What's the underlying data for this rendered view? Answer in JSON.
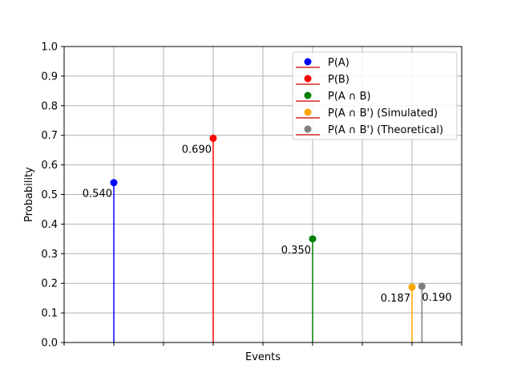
{
  "chart_data": {
    "type": "stem",
    "title": "",
    "xlabel": "Events",
    "ylabel": "Probability",
    "ylim": [
      0,
      1.0
    ],
    "xlim": [
      -0.5,
      3.5
    ],
    "grid": true,
    "yticks": [
      "0.0",
      "0.1",
      "0.2",
      "0.3",
      "0.4",
      "0.5",
      "0.6",
      "0.7",
      "0.8",
      "0.9",
      "1.0"
    ],
    "legend_position": "upper right",
    "series": [
      {
        "name": "P(A)",
        "x": 0,
        "value": 0.54,
        "label": "0.540",
        "color": "#0000ff"
      },
      {
        "name": "P(B)",
        "x": 1,
        "value": 0.69,
        "label": "0.690",
        "color": "#ff0000"
      },
      {
        "name": "P(A ∩ B)",
        "x": 2,
        "value": 0.35,
        "label": "0.350",
        "color": "#008000"
      },
      {
        "name": "P(A ∩ B') (Simulated)",
        "x": 3,
        "value": 0.187,
        "label": "0.187",
        "color": "#ffa500"
      },
      {
        "name": "P(A ∩ B') (Theoretical)",
        "x": 3.1,
        "value": 0.19,
        "label": "0.190",
        "color": "#808080"
      }
    ],
    "baseline_color": "#d62728"
  }
}
